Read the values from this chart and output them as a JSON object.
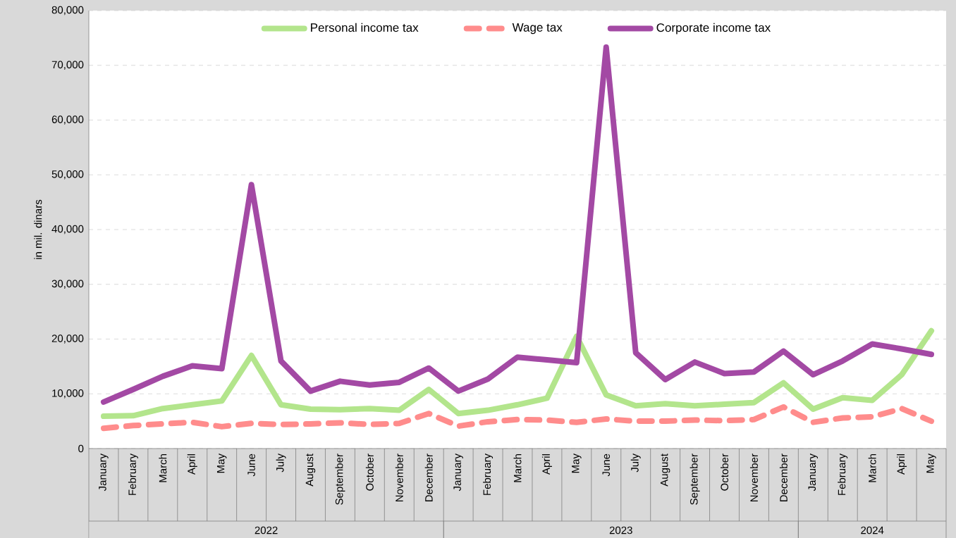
{
  "chart_data": {
    "type": "line",
    "ylabel": "in mil. dinars",
    "categories": [
      "January",
      "February",
      "March",
      "April",
      "May",
      "June",
      "July",
      "August",
      "September",
      "October",
      "November",
      "December",
      "January",
      "February",
      "March",
      "April",
      "May",
      "June",
      "July",
      "August",
      "September",
      "October",
      "November",
      "December",
      "January",
      "February",
      "March",
      "April",
      "May"
    ],
    "series": [
      {
        "name": "Personal income tax",
        "color": "#b3e58c",
        "line_style": "solid",
        "values": [
          5900,
          6000,
          7300,
          8000,
          8700,
          17000,
          8000,
          7200,
          7100,
          7300,
          7000,
          10800,
          6400,
          7000,
          8000,
          9200,
          20500,
          9800,
          7800,
          8200,
          7800,
          8100,
          8400,
          12000,
          7200,
          9300,
          8800,
          13500,
          21500
        ]
      },
      {
        "name": "Wage tax",
        "color": "#ff8c8c",
        "line_style": "dashed",
        "values": [
          3700,
          4200,
          4500,
          4800,
          4000,
          4600,
          4400,
          4500,
          4700,
          4400,
          4600,
          6400,
          4100,
          4900,
          5300,
          5200,
          4800,
          5400,
          5000,
          5000,
          5200,
          5100,
          5300,
          7600,
          4800,
          5600,
          5800,
          7300,
          5000
        ]
      },
      {
        "name": "Corporate income tax",
        "color": "#a349a4",
        "line_style": "solid",
        "values": [
          8500,
          10800,
          13200,
          15100,
          14600,
          48200,
          16000,
          10500,
          12300,
          11600,
          12100,
          14700,
          10500,
          12700,
          16700,
          16200,
          15700,
          73300,
          17500,
          12600,
          15800,
          13700,
          14000,
          17800,
          13500,
          16000,
          19100,
          18200,
          17200
        ]
      }
    ],
    "ylim": [
      0,
      80000
    ],
    "yticks": [
      0,
      {
        "value": 10000,
        "label": "10,000"
      },
      {
        "value": 20000,
        "label": "20,000"
      },
      {
        "value": 30000,
        "label": "30,000"
      },
      {
        "value": 40000,
        "label": "40,000"
      },
      {
        "value": 50000,
        "label": "50,000"
      },
      {
        "value": 60000,
        "label": "60,000"
      },
      {
        "value": 70000,
        "label": "70,000"
      },
      {
        "value": 80000,
        "label": "80,000"
      }
    ],
    "grid": "y",
    "legend": "top",
    "annotations": [
      "2022",
      "2023",
      "2024"
    ]
  }
}
